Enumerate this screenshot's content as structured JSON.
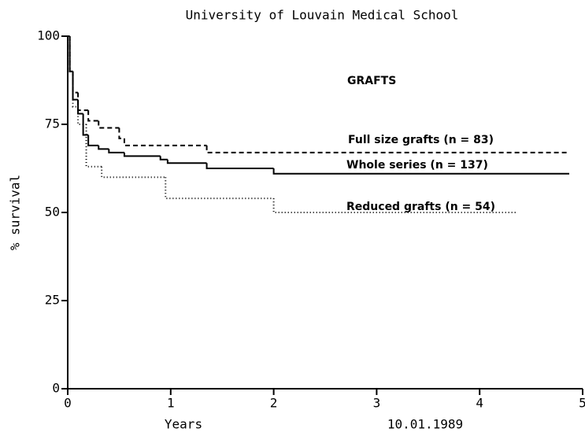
{
  "chart_data": {
    "type": "line",
    "title": "University of Louvain Medical School",
    "subtitle": "GRAFTS",
    "ylabel": "% survival",
    "xlabel": "Years",
    "date": "10.01.1989",
    "xlim": [
      0,
      5
    ],
    "xticks": [
      0,
      1,
      2,
      3,
      4,
      5
    ],
    "ylim": [
      0,
      100
    ],
    "yticks": [
      0,
      25,
      50,
      75,
      100
    ],
    "step": true,
    "series": [
      {
        "name": "Full size grafts (n = 83)",
        "color": "#000",
        "dash": "6,4",
        "x": [
          0,
          0.02,
          0.05,
          0.1,
          0.2,
          0.3,
          0.5,
          0.55,
          1.35,
          4.87
        ],
        "values": [
          100,
          90,
          84,
          79,
          76,
          74,
          71,
          69,
          67,
          67
        ]
      },
      {
        "name": "Whole series (n = 137)",
        "color": "#000",
        "dash": "none",
        "x": [
          0,
          0.02,
          0.05,
          0.1,
          0.15,
          0.2,
          0.3,
          0.4,
          0.55,
          0.9,
          0.97,
          1.35,
          2.0,
          4.87
        ],
        "values": [
          100,
          90,
          82,
          78,
          72,
          69,
          68,
          67,
          66,
          65,
          64,
          62.5,
          61,
          61
        ]
      },
      {
        "name": "Reduced grafts (n = 54)",
        "color": "#000",
        "dash": "1,3",
        "x": [
          0,
          0.02,
          0.05,
          0.1,
          0.18,
          0.33,
          0.95,
          2.0,
          4.35
        ],
        "values": [
          100,
          90,
          80,
          75,
          63,
          60,
          54,
          50,
          50
        ]
      }
    ]
  }
}
